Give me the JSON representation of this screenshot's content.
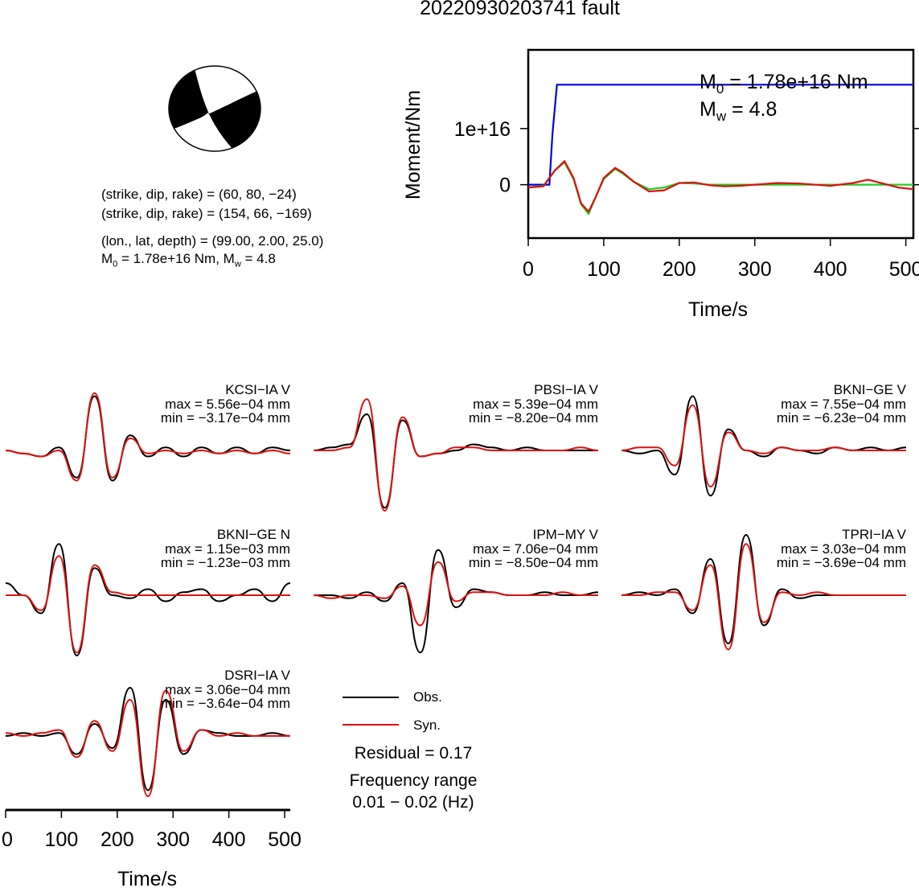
{
  "header": {
    "title": "20220930203741 fault"
  },
  "mechanism": {
    "plane1": "(strike, dip, rake) = (60, 80, −24)",
    "plane2": "(strike, dip, rake) = (154, 66, −169)",
    "location": "(lon., lat, depth) = (99.00, 2.00, 25.0)",
    "m0_text": "1.78e+16 Nm,",
    "mw_text": "4.8"
  },
  "colors": {
    "obs": "#000000",
    "syn": "#dd1111",
    "moment": "#0000dd",
    "stf_green": "#22cc22"
  },
  "chart_data": [
    {
      "type": "line",
      "name": "moment-rate",
      "xlabel": "Time/s",
      "ylabel": "Moment/Nm",
      "xlim": [
        0,
        510
      ],
      "ylim": [
        -9500000000000000.0,
        2.4e+16
      ],
      "xticks": [
        "0",
        "100",
        "200",
        "300",
        "400",
        "500"
      ],
      "yticks": [
        "0",
        "1e+16"
      ],
      "annotation_m0": "1.78e+16 Nm",
      "annotation_mw": "4.8",
      "series": [
        {
          "color": "#0000dd",
          "x": [
            0,
            28,
            32,
            38,
            510
          ],
          "y": [
            0,
            0,
            9000000000000000.0,
            1.78e+16,
            1.78e+16
          ]
        },
        {
          "color": "#22cc22",
          "x": [
            0,
            20,
            35,
            48,
            60,
            70,
            80,
            90,
            100,
            115,
            125,
            140,
            160,
            180,
            200,
            220,
            240,
            260,
            280,
            300,
            330,
            360,
            400,
            430,
            460,
            490,
            510
          ],
          "y": [
            -500000000000000.0,
            -200000000000000.0,
            2500000000000000.0,
            4000000000000000.0,
            1000000000000000.0,
            -3500000000000000.0,
            -5200000000000000.0,
            -2000000000000000.0,
            1000000000000000.0,
            2800000000000000.0,
            2000000000000000.0,
            500000000000000.0,
            -800000000000000.0,
            -500000000000000.0,
            300000000000000.0,
            200000000000000.0,
            0,
            0,
            0,
            0,
            0,
            0,
            0,
            0,
            0,
            0,
            0
          ]
        },
        {
          "color": "#dd1111",
          "x": [
            0,
            20,
            35,
            48,
            60,
            70,
            80,
            90,
            100,
            115,
            125,
            140,
            160,
            180,
            200,
            220,
            240,
            260,
            280,
            300,
            330,
            360,
            400,
            430,
            450,
            470,
            490,
            510
          ],
          "y": [
            -500000000000000.0,
            -300000000000000.0,
            2500000000000000.0,
            4200000000000000.0,
            1200000000000000.0,
            -3300000000000000.0,
            -4800000000000000.0,
            -2000000000000000.0,
            1200000000000000.0,
            3000000000000000.0,
            2200000000000000.0,
            500000000000000.0,
            -1200000000000000.0,
            -1000000000000000.0,
            300000000000000.0,
            400000000000000.0,
            -100000000000000.0,
            -300000000000000.0,
            -200000000000000.0,
            0.0,
            300000000000000.0,
            200000000000000.0,
            -200000000000000.0,
            300000000000000.0,
            900000000000000.0,
            200000000000000.0,
            -500000000000000.0,
            -800000000000000.0
          ]
        }
      ]
    },
    {
      "type": "line",
      "name": "waveform-fits",
      "xlabel": "Time/s",
      "xlim": [
        0,
        510
      ],
      "xticks": [
        "0",
        "100",
        "200",
        "300",
        "400",
        "500"
      ],
      "legend": [
        {
          "label": "Obs.",
          "color": "#000000"
        },
        {
          "label": "Syn.",
          "color": "#dd1111"
        }
      ],
      "residual_text": "Residual = 0.17",
      "freq_title": "Frequency range",
      "freq_text": "0.01 − 0.02 (Hz)",
      "stations": [
        {
          "label": "KCSI−IA V",
          "max_text": "max = 5.56e−04 mm",
          "min_text": "min = −3.17e−04 mm",
          "obs": [
            0,
            -0.05,
            -0.1,
            0.05,
            -0.45,
            0.9,
            -0.5,
            0.25,
            -0.1,
            0.05,
            -0.1,
            0.05,
            -0.05,
            0.05,
            -0.05,
            0.05,
            0.0
          ],
          "syn": [
            0,
            -0.05,
            -0.1,
            0.0,
            -0.5,
            0.95,
            -0.45,
            0.2,
            -0.05,
            0.0,
            -0.05,
            0.0,
            -0.05,
            0.0,
            -0.05,
            0.0,
            -0.05
          ]
        },
        {
          "label": "PBSI−IA V",
          "max_text": "max = 5.39e−04 mm",
          "min_text": "min = −8.20e−04 mm",
          "obs": [
            0,
            0.05,
            0.1,
            0.6,
            -0.95,
            0.5,
            -0.1,
            -0.05,
            0.0,
            0.1,
            0.05,
            0.0,
            0.05,
            0.0,
            0.0,
            0.0,
            0.0
          ],
          "syn": [
            0,
            0.0,
            0.05,
            0.85,
            -1.0,
            0.55,
            -0.1,
            -0.05,
            0.05,
            0.05,
            0.0,
            0.0,
            0.0,
            0.0,
            0.0,
            0.05,
            0.0
          ]
        },
        {
          "label": "BKNI−GE V",
          "max_text": "max = 7.55e−04 mm",
          "min_text": "min = −6.23e−04 mm",
          "obs": [
            0,
            -0.05,
            0.0,
            -0.4,
            0.9,
            -0.75,
            0.35,
            0.0,
            -0.1,
            0.05,
            0.0,
            -0.05,
            0.05,
            0.0,
            0.05,
            0.0,
            0.05
          ],
          "syn": [
            0,
            0.05,
            0.05,
            -0.25,
            0.75,
            -0.6,
            0.3,
            0.0,
            -0.05,
            0.05,
            0.0,
            0.0,
            0.05,
            0.0,
            0.0,
            0.0,
            0.0
          ]
        },
        {
          "label": "BKNI−GE N",
          "max_text": "max = 1.15e−03 mm",
          "min_text": "min = −1.23e−03 mm",
          "obs": [
            0.2,
            0.0,
            -0.3,
            0.85,
            -1.0,
            0.45,
            0.0,
            -0.05,
            0.1,
            -0.1,
            0.05,
            0.1,
            -0.1,
            0.0,
            0.1,
            -0.1,
            0.2
          ],
          "syn": [
            0,
            0.0,
            -0.25,
            0.65,
            -0.95,
            0.5,
            0.05,
            0.0,
            0.0,
            0.0,
            0.0,
            0.0,
            0.0,
            0.0,
            0.0,
            0.0,
            0.0
          ]
        },
        {
          "label": "IPM−MY V",
          "max_text": "max = 7.06e−04 mm",
          "min_text": "min = −8.50e−04 mm",
          "obs": [
            0,
            0.0,
            -0.05,
            0.05,
            -0.1,
            0.2,
            -0.95,
            0.75,
            -0.2,
            0.1,
            0.05,
            0.0,
            0.0,
            0.05,
            0.0,
            0.0,
            0.05
          ],
          "syn": [
            0,
            -0.05,
            0.0,
            0.0,
            -0.05,
            0.15,
            -0.5,
            0.55,
            -0.1,
            0.05,
            0.05,
            0.0,
            0.0,
            0.0,
            0.05,
            0.0,
            0.0
          ]
        },
        {
          "label": "TPRI−IA V",
          "max_text": "max = 3.03e−04 mm",
          "min_text": "min = −3.69e−04 mm",
          "obs": [
            0,
            0.05,
            0.0,
            0.1,
            -0.3,
            0.6,
            -0.8,
            1.0,
            -0.5,
            0.1,
            -0.05,
            0.0,
            0.0,
            0.0,
            0.0,
            0.0,
            0.0
          ],
          "syn": [
            0,
            0.0,
            0.05,
            0.05,
            -0.25,
            0.5,
            -0.9,
            0.85,
            -0.45,
            0.05,
            0.0,
            0.05,
            0.0,
            0.0,
            0.0,
            0.0,
            0.0
          ]
        },
        {
          "label": "DSRI−IA V",
          "max_text": "max = 3.06e−04 mm",
          "min_text": "min = −3.64e−04 mm",
          "obs": [
            0,
            0.05,
            0.0,
            0.05,
            -0.3,
            0.2,
            -0.2,
            0.8,
            -0.9,
            0.6,
            -0.3,
            0.1,
            0.05,
            0.0,
            0.0,
            0.05,
            0.0
          ],
          "syn": [
            0.05,
            0.0,
            0.05,
            0.1,
            -0.35,
            0.25,
            -0.25,
            0.6,
            -1.0,
            0.75,
            -0.25,
            0.1,
            0.0,
            0.05,
            0.0,
            0.0,
            0.0
          ]
        }
      ]
    }
  ]
}
